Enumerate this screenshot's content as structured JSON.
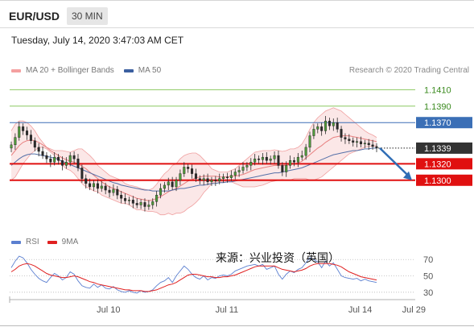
{
  "header": {
    "instrument": "EUR/USD",
    "timeframe": "30 MIN",
    "timestamp": "Tuesday, July 14, 2020 3:47:03 AM CET"
  },
  "legend": {
    "items": [
      {
        "label": "MA 20 + Bollinger Bands",
        "color": "#f08080"
      },
      {
        "label": "MA 50",
        "color": "#3b5fa0"
      }
    ],
    "credit": "Research © 2020 Trading Central"
  },
  "rsi_legend": {
    "items": [
      {
        "label": "RSI",
        "color": "#5b7fd0"
      },
      {
        "label": "9MA",
        "color": "#e02020"
      }
    ]
  },
  "source_note": "来源：兴业投资（英国）",
  "chart_data": [
    {
      "type": "line",
      "panel": "price",
      "ylim": [
        1.1245,
        1.1425
      ],
      "x_ticks": [
        "Jul 10",
        "Jul 11",
        "Jul 14"
      ],
      "levels": [
        {
          "value": 1.141,
          "label": "1.1410",
          "style": "green",
          "color": "#8cc860",
          "text_color": "#3a8a1e"
        },
        {
          "value": 1.139,
          "label": "1.1390",
          "style": "green",
          "color": "#8cc860",
          "text_color": "#3a8a1e"
        },
        {
          "value": 1.137,
          "label": "1.1370",
          "style": "resistance",
          "color": "#3b6fb6",
          "text_color": "#ffffff"
        },
        {
          "value": 1.1339,
          "label": "1.1339",
          "style": "current",
          "color": "#333333",
          "text_color": "#ffffff"
        },
        {
          "value": 1.132,
          "label": "1.1320",
          "style": "support",
          "color": "#e01010",
          "text_color": "#ffffff"
        },
        {
          "value": 1.13,
          "label": "1.1300",
          "style": "support",
          "color": "#e01010",
          "text_color": "#ffffff"
        }
      ],
      "close": [
        1.1343,
        1.1352,
        1.1365,
        1.136,
        1.1355,
        1.1348,
        1.134,
        1.1335,
        1.133,
        1.1326,
        1.1322,
        1.1328,
        1.1324,
        1.1318,
        1.1322,
        1.133,
        1.1326,
        1.1315,
        1.1302,
        1.1296,
        1.1292,
        1.1296,
        1.129,
        1.1293,
        1.1288,
        1.1285,
        1.1289,
        1.1282,
        1.1278,
        1.1275,
        1.1276,
        1.1272,
        1.127,
        1.1273,
        1.1268,
        1.127,
        1.1274,
        1.1282,
        1.129,
        1.1294,
        1.1298,
        1.1292,
        1.13,
        1.1308,
        1.1316,
        1.1314,
        1.1308,
        1.1302,
        1.13,
        1.1302,
        1.1298,
        1.13,
        1.1299,
        1.1302,
        1.1304,
        1.1303,
        1.1306,
        1.131,
        1.1312,
        1.1316,
        1.1318,
        1.1322,
        1.1326,
        1.1325,
        1.1328,
        1.1324,
        1.1326,
        1.133,
        1.1318,
        1.131,
        1.1318,
        1.1324,
        1.1322,
        1.1328,
        1.133,
        1.134,
        1.1354,
        1.1362,
        1.1365,
        1.136,
        1.1372,
        1.1366,
        1.137,
        1.1362,
        1.1352,
        1.135,
        1.1348,
        1.1346,
        1.1347,
        1.1344,
        1.1345,
        1.1343,
        1.1341,
        1.1339
      ],
      "bb_upper": [
        1.136,
        1.1368,
        1.1372,
        1.1372,
        1.137,
        1.1366,
        1.136,
        1.1352,
        1.1346,
        1.134,
        1.1338,
        1.1336,
        1.1336,
        1.1336,
        1.1335,
        1.1334,
        1.1336,
        1.1338,
        1.1338,
        1.1334,
        1.133,
        1.1325,
        1.1318,
        1.1314,
        1.131,
        1.1306,
        1.1304,
        1.1302,
        1.13,
        1.1296,
        1.1294,
        1.1293,
        1.1292,
        1.129,
        1.1289,
        1.1288,
        1.129,
        1.1295,
        1.1302,
        1.1308,
        1.1312,
        1.1318,
        1.132,
        1.1326,
        1.133,
        1.1332,
        1.1333,
        1.1333,
        1.133,
        1.1325,
        1.132,
        1.1314,
        1.1312,
        1.131,
        1.131,
        1.131,
        1.1312,
        1.1314,
        1.1318,
        1.1322,
        1.1326,
        1.133,
        1.1334,
        1.1335,
        1.1336,
        1.1336,
        1.1336,
        1.1337,
        1.1336,
        1.1335,
        1.1336,
        1.1338,
        1.1338,
        1.134,
        1.1344,
        1.1352,
        1.1362,
        1.137,
        1.1376,
        1.138,
        1.1384,
        1.1386,
        1.1388,
        1.1386,
        1.1384,
        1.138,
        1.1376,
        1.1372,
        1.1368,
        1.1364,
        1.136,
        1.1357,
        1.1355,
        1.1352
      ],
      "ma20": [
        1.133,
        1.1336,
        1.1342,
        1.1346,
        1.1348,
        1.1349,
        1.1348,
        1.1346,
        1.1343,
        1.134,
        1.1336,
        1.1333,
        1.133,
        1.1327,
        1.1325,
        1.1323,
        1.1322,
        1.132,
        1.1317,
        1.1314,
        1.131,
        1.1306,
        1.1302,
        1.1298,
        1.1295,
        1.1292,
        1.129,
        1.1288,
        1.1286,
        1.1284,
        1.1282,
        1.128,
        1.1278,
        1.1277,
        1.1276,
        1.1275,
        1.1276,
        1.1278,
        1.128,
        1.1283,
        1.1286,
        1.1288,
        1.129,
        1.1293,
        1.1296,
        1.1299,
        1.1301,
        1.1303,
        1.1304,
        1.1305,
        1.1305,
        1.1305,
        1.1305,
        1.1304,
        1.1304,
        1.1304,
        1.1305,
        1.1305,
        1.1306,
        1.1307,
        1.1309,
        1.1311,
        1.1313,
        1.1314,
        1.1315,
        1.1316,
        1.1317,
        1.1318,
        1.1318,
        1.1318,
        1.1318,
        1.1319,
        1.132,
        1.1321,
        1.1323,
        1.1327,
        1.1331,
        1.1335,
        1.1339,
        1.1342,
        1.1346,
        1.1349,
        1.1352,
        1.1353,
        1.1354,
        1.1354,
        1.1354,
        1.1353,
        1.1352,
        1.1351,
        1.135,
        1.1349,
        1.1348,
        1.1347
      ],
      "bb_lower": [
        1.13,
        1.1304,
        1.1312,
        1.132,
        1.1326,
        1.1332,
        1.1336,
        1.134,
        1.134,
        1.1338,
        1.1334,
        1.133,
        1.1324,
        1.1318,
        1.1314,
        1.1312,
        1.1308,
        1.1302,
        1.1296,
        1.1292,
        1.129,
        1.1287,
        1.1286,
        1.1282,
        1.128,
        1.1278,
        1.1276,
        1.1274,
        1.1272,
        1.1272,
        1.127,
        1.1267,
        1.1264,
        1.1264,
        1.1263,
        1.1262,
        1.1262,
        1.1261,
        1.1258,
        1.1258,
        1.126,
        1.1258,
        1.126,
        1.126,
        1.1262,
        1.1266,
        1.1269,
        1.1273,
        1.1278,
        1.1285,
        1.129,
        1.1296,
        1.1298,
        1.1298,
        1.1298,
        1.1298,
        1.1298,
        1.1296,
        1.1294,
        1.1292,
        1.1292,
        1.1292,
        1.1292,
        1.1293,
        1.1294,
        1.1296,
        1.1298,
        1.1299,
        1.13,
        1.1301,
        1.13,
        1.13,
        1.1302,
        1.1302,
        1.1302,
        1.1302,
        1.13,
        1.13,
        1.1302,
        1.1304,
        1.1308,
        1.1312,
        1.1316,
        1.132,
        1.1324,
        1.1328,
        1.1332,
        1.1334,
        1.1336,
        1.1338,
        1.134,
        1.1341,
        1.1341,
        1.1342
      ],
      "ma50": [
        1.1318,
        1.1322,
        1.1326,
        1.1329,
        1.1331,
        1.1332,
        1.1332,
        1.1331,
        1.133,
        1.1329,
        1.1328,
        1.1327,
        1.1325,
        1.1323,
        1.1321,
        1.1319,
        1.1317,
        1.1315,
        1.1313,
        1.1311,
        1.1309,
        1.1307,
        1.1305,
        1.1303,
        1.1301,
        1.1299,
        1.1297,
        1.1296,
        1.1294,
        1.1293,
        1.1292,
        1.1291,
        1.129,
        1.1289,
        1.1288,
        1.1288,
        1.1287,
        1.1287,
        1.1287,
        1.1287,
        1.1287,
        1.1288,
        1.1289,
        1.129,
        1.129,
        1.1291,
        1.1292,
        1.1293,
        1.1294,
        1.1294,
        1.1295,
        1.1296,
        1.1296,
        1.1297,
        1.1297,
        1.1298,
        1.1298,
        1.1299,
        1.13,
        1.1301,
        1.1302,
        1.1303,
        1.1304,
        1.1305,
        1.1306,
        1.1307,
        1.1308,
        1.1309,
        1.1309,
        1.131,
        1.1311,
        1.1312,
        1.1313,
        1.1314,
        1.1315,
        1.1317,
        1.1319,
        1.1321,
        1.1323,
        1.1325,
        1.1327,
        1.1329,
        1.1331,
        1.1332,
        1.1333,
        1.1334,
        1.1335,
        1.1336,
        1.1336,
        1.1337,
        1.1338,
        1.1338,
        1.1339,
        1.1339
      ],
      "forecast_arrow": {
        "from": 1.1339,
        "to": 1.13
      }
    },
    {
      "type": "line",
      "panel": "rsi",
      "ylim": [
        25,
        80
      ],
      "y_ticks": [
        70,
        50,
        30
      ],
      "x_ticks": [
        "Jul 10",
        "Jul 11",
        "Jul 14",
        "Jul 29"
      ],
      "series": [
        {
          "name": "RSI",
          "color": "#5b7fd0",
          "values": [
            60,
            68,
            74,
            72,
            66,
            58,
            52,
            47,
            44,
            42,
            48,
            53,
            50,
            45,
            48,
            55,
            52,
            44,
            38,
            36,
            35,
            40,
            36,
            39,
            35,
            34,
            37,
            33,
            31,
            30,
            32,
            30,
            29,
            32,
            30,
            31,
            33,
            38,
            42,
            44,
            48,
            42,
            50,
            56,
            62,
            58,
            52,
            48,
            46,
            50,
            45,
            48,
            47,
            50,
            51,
            50,
            52,
            56,
            58,
            60,
            62,
            63,
            64,
            62,
            64,
            58,
            60,
            62,
            52,
            46,
            52,
            56,
            54,
            58,
            60,
            66,
            72,
            70,
            67,
            60,
            68,
            62,
            66,
            58,
            50,
            48,
            47,
            46,
            47,
            44,
            46,
            44,
            43,
            42
          ]
        },
        {
          "name": "9MA",
          "color": "#e02020",
          "values": [
            55,
            58,
            62,
            64,
            65,
            64,
            62,
            59,
            56,
            53,
            51,
            50,
            49,
            48,
            48,
            49,
            50,
            49,
            47,
            45,
            43,
            42,
            40,
            39,
            38,
            37,
            36,
            35,
            34,
            33,
            33,
            32,
            32,
            32,
            31,
            31,
            32,
            33,
            35,
            37,
            39,
            40,
            42,
            45,
            48,
            51,
            52,
            52,
            51,
            50,
            49,
            49,
            48,
            48,
            49,
            49,
            50,
            51,
            53,
            55,
            57,
            59,
            61,
            62,
            62,
            62,
            62,
            62,
            60,
            58,
            57,
            56,
            55,
            56,
            57,
            59,
            62,
            64,
            65,
            65,
            65,
            65,
            64,
            63,
            61,
            58,
            55,
            53,
            51,
            49,
            48,
            47,
            46,
            45
          ]
        }
      ]
    }
  ]
}
